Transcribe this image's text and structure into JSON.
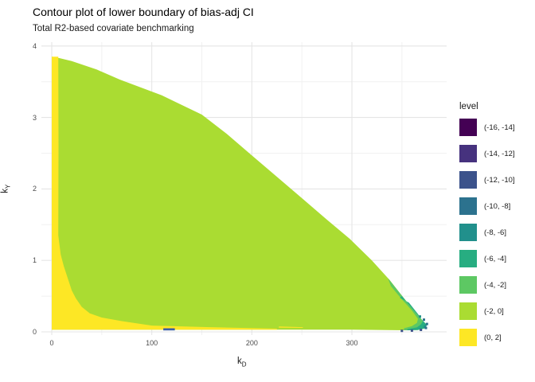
{
  "title": "Contour plot of lower boundary of bias-adj CI",
  "subtitle": "Total R2-based covariate benchmarking",
  "x_axis": {
    "label_base": "k",
    "label_sub": "D",
    "major_ticks": [
      0,
      100,
      200,
      300
    ],
    "minor_ticks": [
      50,
      150,
      250,
      350
    ]
  },
  "y_axis": {
    "label_base": "k",
    "label_sub": "Y",
    "major_ticks": [
      0,
      1,
      2,
      3,
      4
    ],
    "minor_ticks": [
      0.5,
      1.5,
      2.5,
      3.5
    ]
  },
  "legend": {
    "title": "level",
    "entries": [
      {
        "label": "(-16, -14]",
        "color": "#440154"
      },
      {
        "label": "(-14, -12]",
        "color": "#46327E"
      },
      {
        "label": "(-12, -10]",
        "color": "#3B528B"
      },
      {
        "label": "(-10, -8]",
        "color": "#2C728E"
      },
      {
        "label": "(-8, -6]",
        "color": "#21908C"
      },
      {
        "label": "(-6, -4]",
        "color": "#27AD81"
      },
      {
        "label": "(-4, -2]",
        "color": "#5DC863"
      },
      {
        "label": "(-2, 0]",
        "color": "#AADC32"
      },
      {
        "label": "(0, 2]",
        "color": "#FDE725"
      }
    ]
  },
  "chart_data": {
    "type": "filled_contour",
    "title": "Contour plot of lower boundary of bias-adj CI",
    "subtitle": "Total R2-based covariate benchmarking",
    "xlabel": "k_D",
    "ylabel": "k_Y",
    "xlim": [
      -10,
      395
    ],
    "ylim": [
      -0.05,
      4.05
    ],
    "x_data_range": [
      0,
      375
    ],
    "y_data_range": [
      0,
      3.85
    ],
    "grid": true,
    "legend_position": "right",
    "levels": [
      "(-16, -14]",
      "(-14, -12]",
      "(-12, -10]",
      "(-10, -8]",
      "(-8, -6]",
      "(-6, -4]",
      "(-4, -2]",
      "(-2, 0]",
      "(0, 2]"
    ],
    "regions": [
      {
        "name": "band -2 to 0 (bulk)",
        "level": "(-2, 0]",
        "color": "#AADC32",
        "points": [
          [
            0,
            3.85
          ],
          [
            8,
            3.83
          ],
          [
            20,
            3.79
          ],
          [
            45,
            3.67
          ],
          [
            68,
            3.53
          ],
          [
            110,
            3.31
          ],
          [
            150,
            3.04
          ],
          [
            175,
            2.77
          ],
          [
            200,
            2.47
          ],
          [
            225,
            2.17
          ],
          [
            251,
            1.86
          ],
          [
            275,
            1.57
          ],
          [
            298,
            1.3
          ],
          [
            320,
            1.0
          ],
          [
            338,
            0.72
          ],
          [
            352,
            0.47
          ],
          [
            363,
            0.28
          ],
          [
            371,
            0.155
          ],
          [
            375,
            0.095
          ],
          [
            373,
            0.05
          ],
          [
            366,
            0.027
          ],
          [
            352,
            0.022
          ],
          [
            300,
            0.03
          ],
          [
            100,
            0.03
          ],
          [
            0,
            0.03
          ]
        ]
      },
      {
        "name": "band 0 to 2 (left band and bottom wedge)",
        "level": "(0, 2]",
        "color": "#FDE725",
        "points": [
          [
            0,
            3.85
          ],
          [
            6.5,
            3.85
          ],
          [
            6.8,
            2.6
          ],
          [
            6.5,
            1.35
          ],
          [
            9,
            1.08
          ],
          [
            12,
            0.92
          ],
          [
            16,
            0.75
          ],
          [
            20,
            0.58
          ],
          [
            24,
            0.47
          ],
          [
            30,
            0.35
          ],
          [
            38,
            0.26
          ],
          [
            50,
            0.2
          ],
          [
            70,
            0.15
          ],
          [
            100,
            0.088
          ],
          [
            140,
            0.072
          ],
          [
            180,
            0.058
          ],
          [
            225,
            0.045
          ],
          [
            225,
            0.03
          ],
          [
            0,
            0.03
          ]
        ]
      },
      {
        "name": "band 0 to 2 (thin bottom streak)",
        "level": "(0, 2]",
        "color": "#FDE725",
        "points": [
          [
            227,
            0.075
          ],
          [
            251,
            0.066
          ],
          [
            251,
            0.056
          ],
          [
            227,
            0.058
          ]
        ]
      },
      {
        "name": "band -4 to -2 (tip crescent)",
        "level": "(-4, -2]",
        "color": "#5DC863",
        "points": [
          [
            336,
            0.75
          ],
          [
            352,
            0.47
          ],
          [
            363,
            0.28
          ],
          [
            371,
            0.155
          ],
          [
            375,
            0.095
          ],
          [
            373,
            0.05
          ],
          [
            366,
            0.027
          ],
          [
            352,
            0.022
          ],
          [
            352,
            0.05
          ],
          [
            360,
            0.08
          ],
          [
            365,
            0.125
          ],
          [
            366,
            0.18
          ],
          [
            360,
            0.3
          ],
          [
            350,
            0.455
          ],
          [
            339,
            0.64
          ]
        ]
      },
      {
        "name": "band -6 to -4 (tip edge sliver)",
        "level": "(-6, -4]",
        "color": "#27AD81",
        "points": [
          [
            350,
            0.5
          ],
          [
            363,
            0.28
          ],
          [
            371,
            0.155
          ],
          [
            375,
            0.095
          ],
          [
            373,
            0.05
          ],
          [
            366,
            0.027
          ],
          [
            355,
            0.022
          ],
          [
            356,
            0.04
          ],
          [
            365,
            0.062
          ],
          [
            369,
            0.105
          ],
          [
            371,
            0.15
          ],
          [
            366,
            0.25
          ],
          [
            357,
            0.41
          ],
          [
            348,
            0.475
          ]
        ]
      },
      {
        "name": "deep-level dash near x=116",
        "level": "(-10, -8]",
        "color": "#3C5FA6",
        "points": [
          [
            111.5,
            0.05
          ],
          [
            123,
            0.05
          ],
          [
            123,
            0.02
          ],
          [
            111.5,
            0.02
          ]
        ]
      }
    ],
    "edge_dots": [
      {
        "color": "#21908C",
        "x": 368,
        "y": 0.215
      },
      {
        "color": "#2C728E",
        "x": 372,
        "y": 0.17
      },
      {
        "color": "#2C728E",
        "x": 375,
        "y": 0.11
      },
      {
        "color": "#21908C",
        "x": 373,
        "y": 0.075
      },
      {
        "color": "#2C728E",
        "x": 374,
        "y": 0.055
      },
      {
        "color": "#3B528B",
        "x": 369,
        "y": 0.028
      },
      {
        "color": "#3B528B",
        "x": 360,
        "y": 0.018
      },
      {
        "color": "#3B528B",
        "x": 350,
        "y": 0.015
      }
    ],
    "grid_colors": {
      "major": "#E5E5E5",
      "minor": "#F1F1F1"
    }
  }
}
